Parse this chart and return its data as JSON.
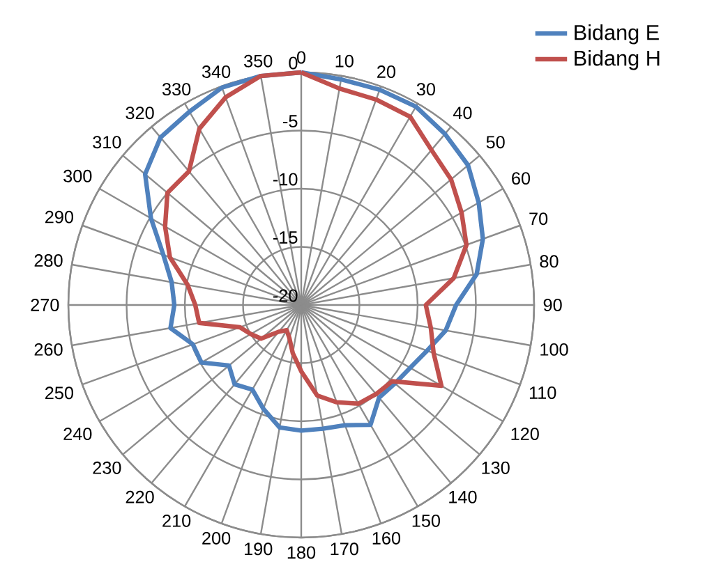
{
  "chart_data": {
    "type": "radar",
    "categories": [
      "0",
      "10",
      "20",
      "30",
      "40",
      "50",
      "60",
      "70",
      "80",
      "90",
      "100",
      "110",
      "120",
      "130",
      "140",
      "150",
      "160",
      "170",
      "180",
      "190",
      "200",
      "210",
      "220",
      "230",
      "240",
      "250",
      "260",
      "270",
      "280",
      "290",
      "300",
      "310",
      "320",
      "330",
      "340",
      "350"
    ],
    "series": [
      {
        "name": "Bidang E",
        "color": "#4f81bd",
        "values": [
          0,
          -0.3,
          -0.3,
          -0.3,
          -0.8,
          -1.3,
          -2.4,
          -3.4,
          -4.7,
          -6.7,
          -7.4,
          -8.5,
          -9.2,
          -9.5,
          -9.6,
          -8.1,
          -9,
          -9.2,
          -9.2,
          -9.3,
          -10.5,
          -11.6,
          -11.1,
          -11.9,
          -10.1,
          -10.1,
          -8.6,
          -9.1,
          -8.7,
          -7.4,
          -5.1,
          -2.5,
          -1.2,
          -0.8,
          -0.1,
          0
        ]
      },
      {
        "name": "Bidang H",
        "color": "#c0504d",
        "values": [
          0,
          -1.1,
          -1.2,
          -1.3,
          -2.6,
          -3.2,
          -4.1,
          -4.9,
          -6.7,
          -9.3,
          -8.7,
          -7.9,
          -6.1,
          -9.8,
          -10,
          -10.2,
          -11.1,
          -12.1,
          -14.3,
          -15.8,
          -17,
          -17.5,
          -17,
          -15.5,
          -15,
          -14.4,
          -11.1,
          -10.9,
          -10.1,
          -8,
          -6.5,
          -5,
          -5,
          -2.5,
          -1,
          0
        ]
      }
    ],
    "ylim": [
      -20,
      0
    ],
    "yticks": [
      -20,
      -15,
      -10,
      -5,
      0
    ],
    "grid": true,
    "legend": "top right"
  }
}
